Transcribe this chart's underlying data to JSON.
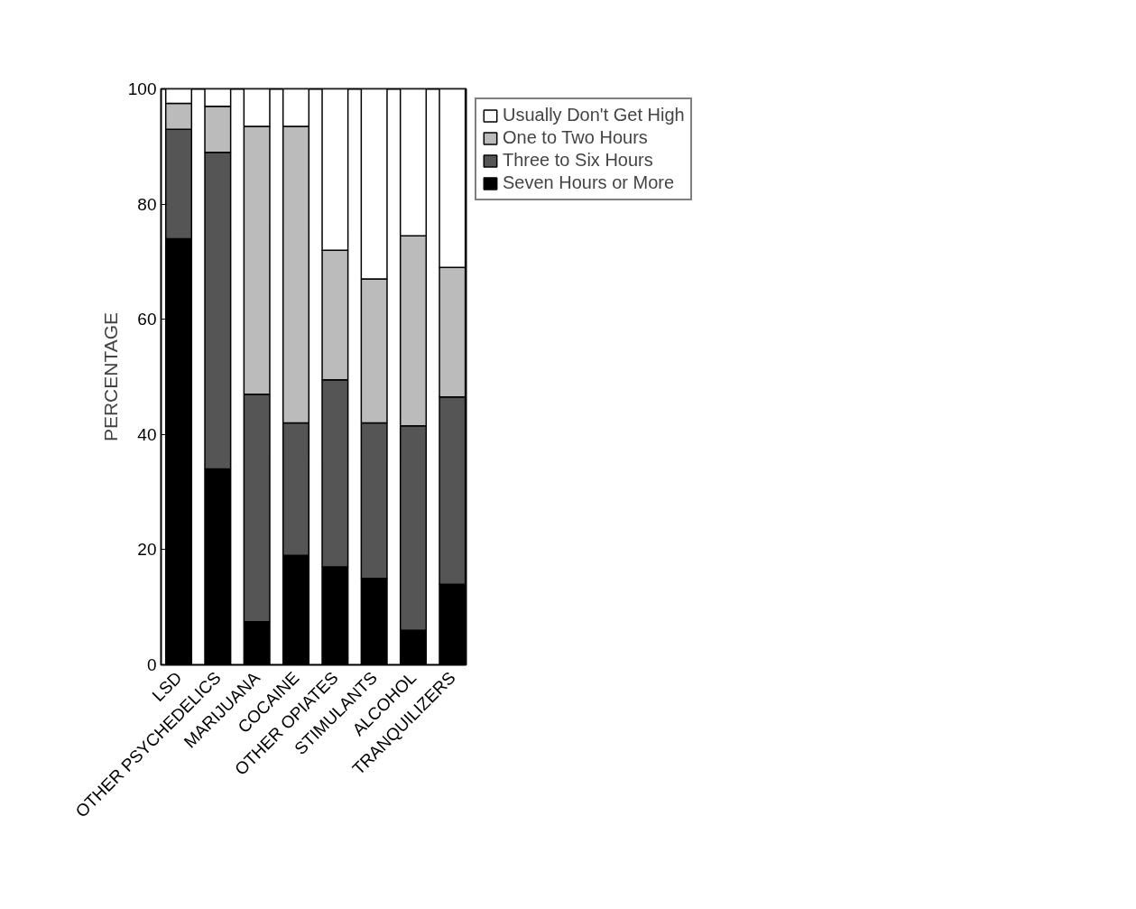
{
  "chart_data": {
    "type": "bar",
    "stacked": true,
    "ylabel": "PERCENTAGE",
    "categories": [
      "LSD",
      "OTHER PSYCHEDELICS",
      "MARIJUANA",
      "COCAINE",
      "OTHER OPIATES",
      "STIMULANTS",
      "ALCOHOL",
      "TRANQUILIZERS"
    ],
    "series": [
      {
        "name": "Seven Hours or More",
        "color": "#000000",
        "values": [
          74,
          34,
          7.5,
          19,
          17,
          15,
          6,
          14
        ]
      },
      {
        "name": "Three to Six Hours",
        "color": "#555555",
        "values": [
          19,
          55,
          39.5,
          23,
          32.5,
          27,
          35.5,
          32.5
        ]
      },
      {
        "name": "One to Two Hours",
        "color": "#bbbbbb",
        "values": [
          4.5,
          8,
          46.5,
          51.5,
          22.5,
          25,
          33,
          22.5
        ]
      },
      {
        "name": "Usually Don't Get High",
        "color": "#ffffff",
        "values": [
          2.5,
          3,
          6.5,
          6.5,
          28,
          33,
          25.5,
          31
        ]
      }
    ],
    "ylim": [
      0,
      100
    ],
    "yticks": [
      0,
      20,
      40,
      60,
      80,
      100
    ],
    "grid": false,
    "legend": "top right"
  }
}
